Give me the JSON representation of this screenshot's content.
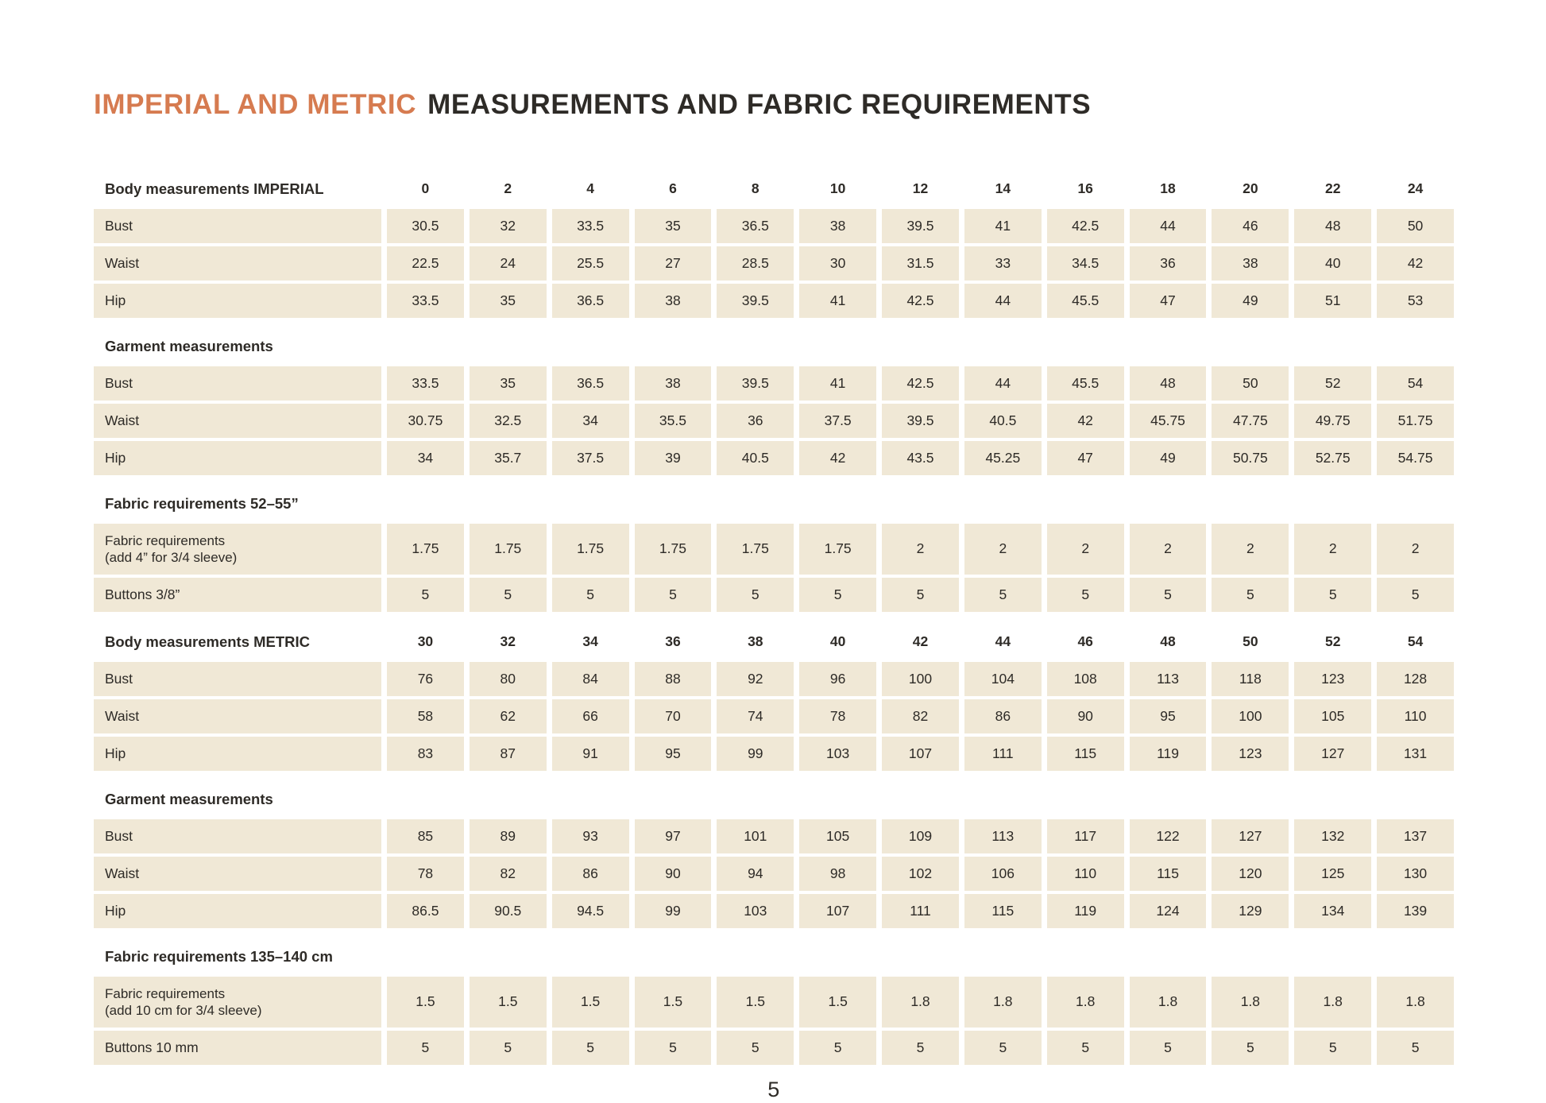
{
  "title": {
    "accent": "IMPERIAL AND METRIC",
    "rest": "MEASUREMENTS AND FABRIC REQUIREMENTS"
  },
  "footer": {
    "page_number": "5"
  },
  "table": {
    "rows": [
      {
        "type": "header",
        "label": "Body measurements IMPERIAL",
        "values": [
          "0",
          "2",
          "4",
          "6",
          "8",
          "10",
          "12",
          "14",
          "16",
          "18",
          "20",
          "22",
          "24"
        ]
      },
      {
        "type": "data",
        "label": "Bust",
        "values": [
          "30.5",
          "32",
          "33.5",
          "35",
          "36.5",
          "38",
          "39.5",
          "41",
          "42.5",
          "44",
          "46",
          "48",
          "50"
        ]
      },
      {
        "type": "data",
        "label": "Waist",
        "values": [
          "22.5",
          "24",
          "25.5",
          "27",
          "28.5",
          "30",
          "31.5",
          "33",
          "34.5",
          "36",
          "38",
          "40",
          "42"
        ]
      },
      {
        "type": "data",
        "label": "Hip",
        "values": [
          "33.5",
          "35",
          "36.5",
          "38",
          "39.5",
          "41",
          "42.5",
          "44",
          "45.5",
          "47",
          "49",
          "51",
          "53"
        ]
      },
      {
        "type": "section",
        "label": "Garment measurements"
      },
      {
        "type": "data",
        "label": "Bust",
        "values": [
          "33.5",
          "35",
          "36.5",
          "38",
          "39.5",
          "41",
          "42.5",
          "44",
          "45.5",
          "48",
          "50",
          "52",
          "54"
        ]
      },
      {
        "type": "data",
        "label": "Waist",
        "values": [
          "30.75",
          "32.5",
          "34",
          "35.5",
          "36",
          "37.5",
          "39.5",
          "40.5",
          "42",
          "45.75",
          "47.75",
          "49.75",
          "51.75"
        ]
      },
      {
        "type": "data",
        "label": "Hip",
        "values": [
          "34",
          "35.7",
          "37.5",
          "39",
          "40.5",
          "42",
          "43.5",
          "45.25",
          "47",
          "49",
          "50.75",
          "52.75",
          "54.75"
        ]
      },
      {
        "type": "section",
        "label": "Fabric requirements 52–55”"
      },
      {
        "type": "data",
        "tall": true,
        "label": "Fabric requirements",
        "sublabel": "(add 4” for 3/4 sleeve)",
        "values": [
          "1.75",
          "1.75",
          "1.75",
          "1.75",
          "1.75",
          "1.75",
          "2",
          "2",
          "2",
          "2",
          "2",
          "2",
          "2"
        ]
      },
      {
        "type": "data",
        "label": "Buttons 3/8”",
        "values": [
          "5",
          "5",
          "5",
          "5",
          "5",
          "5",
          "5",
          "5",
          "5",
          "5",
          "5",
          "5",
          "5"
        ]
      },
      {
        "type": "header",
        "label": "Body measurements METRIC",
        "values": [
          "30",
          "32",
          "34",
          "36",
          "38",
          "40",
          "42",
          "44",
          "46",
          "48",
          "50",
          "52",
          "54"
        ]
      },
      {
        "type": "data",
        "label": "Bust",
        "values": [
          "76",
          "80",
          "84",
          "88",
          "92",
          "96",
          "100",
          "104",
          "108",
          "113",
          "118",
          "123",
          "128"
        ]
      },
      {
        "type": "data",
        "label": "Waist",
        "values": [
          "58",
          "62",
          "66",
          "70",
          "74",
          "78",
          "82",
          "86",
          "90",
          "95",
          "100",
          "105",
          "110"
        ]
      },
      {
        "type": "data",
        "label": "Hip",
        "values": [
          "83",
          "87",
          "91",
          "95",
          "99",
          "103",
          "107",
          "111",
          "115",
          "119",
          "123",
          "127",
          "131"
        ]
      },
      {
        "type": "section",
        "label": "Garment measurements"
      },
      {
        "type": "data",
        "label": "Bust",
        "values": [
          "85",
          "89",
          "93",
          "97",
          "101",
          "105",
          "109",
          "113",
          "117",
          "122",
          "127",
          "132",
          "137"
        ]
      },
      {
        "type": "data",
        "label": "Waist",
        "values": [
          "78",
          "82",
          "86",
          "90",
          "94",
          "98",
          "102",
          "106",
          "110",
          "115",
          "120",
          "125",
          "130"
        ]
      },
      {
        "type": "data",
        "label": "Hip",
        "values": [
          "86.5",
          "90.5",
          "94.5",
          "99",
          "103",
          "107",
          "111",
          "115",
          "119",
          "124",
          "129",
          "134",
          "139"
        ]
      },
      {
        "type": "section",
        "label": "Fabric requirements 135–140 cm"
      },
      {
        "type": "data",
        "tall": true,
        "label": "Fabric requirements",
        "sublabel": "(add 10 cm for 3/4 sleeve)",
        "values": [
          "1.5",
          "1.5",
          "1.5",
          "1.5",
          "1.5",
          "1.5",
          "1.8",
          "1.8",
          "1.8",
          "1.8",
          "1.8",
          "1.8",
          "1.8"
        ]
      },
      {
        "type": "data",
        "label": "Buttons 10 mm",
        "values": [
          "5",
          "5",
          "5",
          "5",
          "5",
          "5",
          "5",
          "5",
          "5",
          "5",
          "5",
          "5",
          "5"
        ]
      }
    ]
  },
  "colors": {
    "accent_orange": "#d67b50",
    "cell_beige": "#f0e8d6",
    "text_dark": "#2e2b27"
  }
}
